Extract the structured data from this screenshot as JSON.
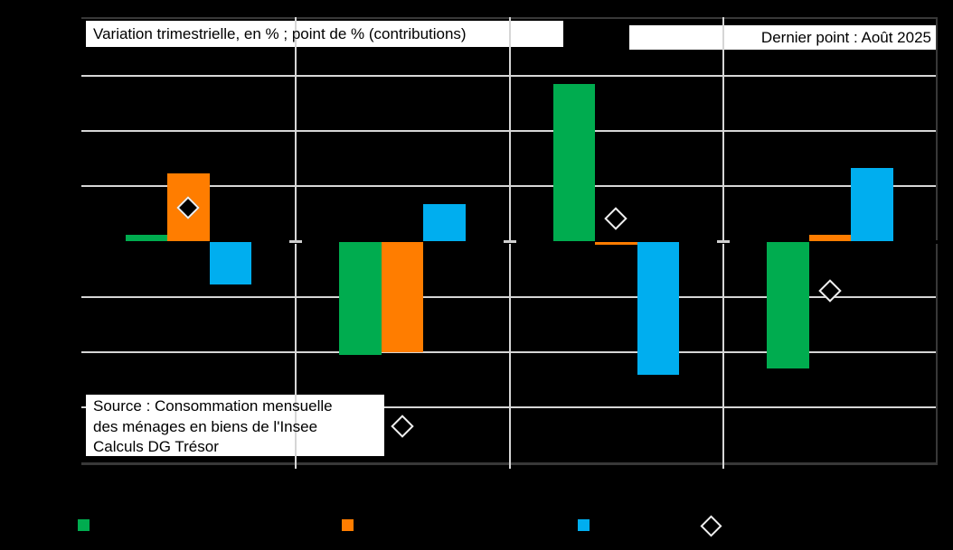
{
  "header": {
    "title": "Variation trimestrielle, en % ; point de % (contributions)",
    "last_point": "Dernier point : Août 2025"
  },
  "source": {
    "line1": "Source : Consommation mensuelle",
    "line2": "des ménages en biens de l'Insee",
    "line3": "Calculs DG Trésor"
  },
  "colors": {
    "background": "#000000",
    "plot_background": "#000000",
    "gridline": "#d6d6d6",
    "plot_border": "#383838",
    "green_series": "#00AC4F",
    "orange_series": "#FF7D00",
    "blue_series": "#00AEEF",
    "diamond_fill": "#000000",
    "diamond_outline": "#f0f0f0",
    "text_box_background": "#ffffff",
    "text_color": "#000000"
  },
  "chart_data": {
    "type": "bar",
    "title": "Variation trimestrielle, en % ; point de % (contributions)",
    "annotation_top_right": "Dernier point : Août 2025",
    "source_note": "Source : Consommation mensuelle des ménages en biens de l'Insee Calculs DG Trésor",
    "categories": [
      "",
      "",
      "",
      ""
    ],
    "x_axis_labels_visible": false,
    "y_axis_labels_visible": false,
    "grid": true,
    "gridline_step": 1,
    "ylim": [
      -4,
      4
    ],
    "series": [
      {
        "name": "",
        "type": "bar",
        "color": "#00AC4F",
        "values": [
          0.13,
          -2.05,
          2.85,
          -2.3
        ]
      },
      {
        "name": "",
        "type": "bar",
        "color": "#FF7D00",
        "values": [
          1.23,
          -2.0,
          -0.05,
          0.13
        ]
      },
      {
        "name": "",
        "type": "bar",
        "color": "#00AEEF",
        "values": [
          -0.78,
          0.68,
          -2.4,
          1.33
        ]
      },
      {
        "name": "",
        "type": "scatter-diamond",
        "color": "#000000",
        "outline": "#f0f0f0",
        "values": [
          0.6,
          -3.35,
          0.4,
          -0.9
        ]
      }
    ],
    "legend": {
      "position": "bottom",
      "items": [
        {
          "marker": "square",
          "color": "#00AC4F",
          "label": ""
        },
        {
          "marker": "square",
          "color": "#FF7D00",
          "label": ""
        },
        {
          "marker": "square",
          "color": "#00AEEF",
          "label": ""
        },
        {
          "marker": "diamond",
          "color": "#000000",
          "label": ""
        }
      ]
    }
  }
}
